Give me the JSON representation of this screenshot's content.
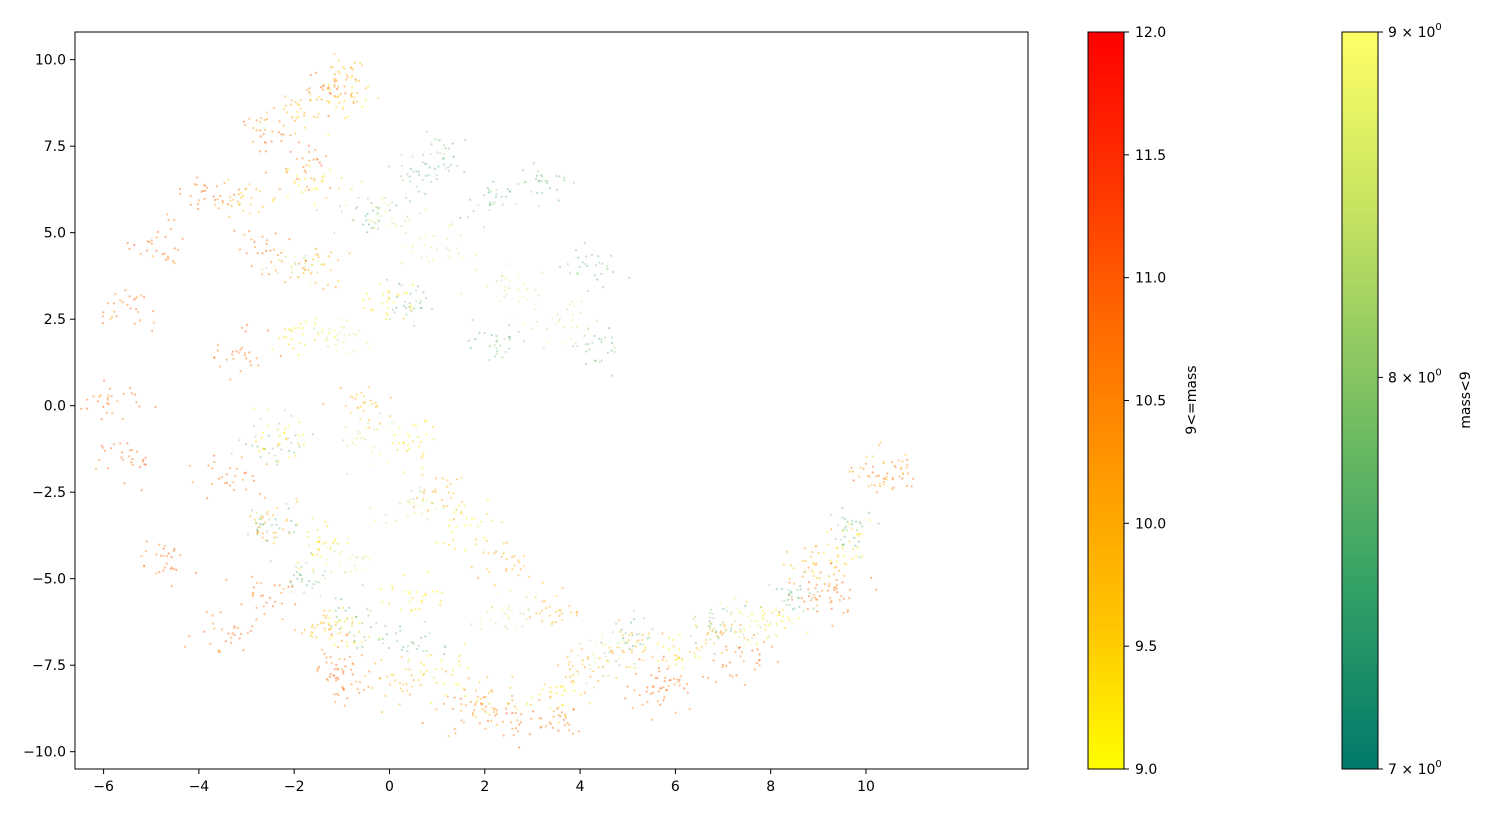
{
  "chart_data": {
    "type": "scatter",
    "title": "",
    "xlabel": "",
    "ylabel": "",
    "xlim": [
      -6.6,
      13.4
    ],
    "ylim": [
      -10.5,
      10.8
    ],
    "x_ticks": [
      {
        "value": -6,
        "label": "−6"
      },
      {
        "value": -4,
        "label": "−4"
      },
      {
        "value": -2,
        "label": "−2"
      },
      {
        "value": 0,
        "label": "0"
      },
      {
        "value": 2,
        "label": "2"
      },
      {
        "value": 4,
        "label": "4"
      },
      {
        "value": 6,
        "label": "6"
      },
      {
        "value": 8,
        "label": "8"
      },
      {
        "value": 10,
        "label": "10"
      }
    ],
    "y_ticks": [
      {
        "value": 10.0,
        "label": "10.0"
      },
      {
        "value": 7.5,
        "label": "7.5"
      },
      {
        "value": 5.0,
        "label": "5.0"
      },
      {
        "value": 2.5,
        "label": "2.5"
      },
      {
        "value": 0.0,
        "label": "0.0"
      },
      {
        "value": -2.5,
        "label": "−2.5"
      },
      {
        "value": -5.0,
        "label": "−5.0"
      },
      {
        "value": -7.5,
        "label": "−7.5"
      },
      {
        "value": -10.0,
        "label": "−10.0"
      }
    ],
    "grid": false,
    "series": [
      {
        "name": "9<=mass",
        "colormap": [
          "#ffff00",
          "#ffc400",
          "#ff9a00",
          "#ff6a00",
          "#ff3300",
          "#ff0000"
        ],
        "value_range": [
          9.0,
          12.0
        ],
        "regions": [
          {
            "value_range": [
              10.3,
              11.2
            ],
            "points": [
              [
                -5.8,
                0.2
              ],
              [
                -5.5,
                2.8
              ],
              [
                -4.8,
                4.6
              ],
              [
                -3.9,
                6.2
              ],
              [
                -2.5,
                8.0
              ],
              [
                -1.2,
                9.2
              ],
              [
                -1.8,
                7.0
              ],
              [
                -2.6,
                4.5
              ],
              [
                -3.1,
                1.5
              ],
              [
                -3.2,
                -2.0
              ],
              [
                -2.5,
                -5.5
              ],
              [
                -1.0,
                -7.5
              ],
              [
                1.5,
                -8.8
              ],
              [
                3.5,
                -9.1
              ],
              [
                5.5,
                -8.2
              ],
              [
                7.5,
                -7.3
              ],
              [
                9.2,
                -5.2
              ],
              [
                10.4,
                -2.0
              ],
              [
                9.0,
                -5.6
              ],
              [
                6.0,
                -8.0
              ],
              [
                2.5,
                -9.0
              ],
              [
                -1.0,
                -8.0
              ],
              [
                -3.5,
                -6.6
              ],
              [
                -4.8,
                -4.4
              ],
              [
                -5.5,
                -1.6
              ]
            ]
          },
          {
            "value_range": [
              9.6,
              10.3
            ],
            "points": [
              [
                -3.0,
                6.0
              ],
              [
                -2.0,
                8.6
              ],
              [
                -1.0,
                9.6
              ],
              [
                -1.5,
                4.0
              ],
              [
                -0.5,
                0.0
              ],
              [
                1.0,
                -2.5
              ],
              [
                2.4,
                -4.5
              ],
              [
                3.5,
                -5.8
              ],
              [
                5.0,
                -6.9
              ],
              [
                7.0,
                -6.6
              ],
              [
                9.0,
                -4.6
              ],
              [
                10.4,
                -1.8
              ],
              [
                4.0,
                -7.5
              ],
              [
                2.0,
                -8.6
              ],
              [
                0.2,
                -8.0
              ],
              [
                -1.5,
                -6.5
              ],
              [
                -2.5,
                -3.5
              ]
            ]
          },
          {
            "value_range": [
              9.0,
              9.6
            ],
            "points": [
              [
                -2.0,
                2.0
              ],
              [
                -1.5,
                6.5
              ],
              [
                -1.0,
                8.8
              ],
              [
                0.0,
                3.0
              ],
              [
                0.5,
                -1.0
              ],
              [
                1.6,
                -3.5
              ],
              [
                0.5,
                -5.5
              ],
              [
                -1.0,
                -6.5
              ],
              [
                1.0,
                -7.7
              ],
              [
                3.5,
                -8.4
              ],
              [
                6.0,
                -7.2
              ],
              [
                8.0,
                -6.2
              ],
              [
                9.5,
                -4.2
              ],
              [
                -2.2,
                -1.0
              ],
              [
                -1.5,
                -4.0
              ]
            ]
          }
        ]
      },
      {
        "name": "mass<9",
        "colormap": [
          "#00796b",
          "#34a265",
          "#7cc062",
          "#c4e261",
          "#ffff66"
        ],
        "value_range": [
          7.0,
          9.0
        ],
        "colorbar_scale": "log",
        "regions": [
          {
            "value_range": [
              7.3,
              8.2
            ],
            "points": [
              [
                0.6,
                6.8
              ],
              [
                1.0,
                7.3
              ],
              [
                2.2,
                6.0
              ],
              [
                3.3,
                6.5
              ],
              [
                4.3,
                4.0
              ],
              [
                4.3,
                1.7
              ],
              [
                2.2,
                1.8
              ],
              [
                0.5,
                3.0
              ],
              [
                -0.5,
                5.5
              ],
              [
                -2.5,
                -1.0
              ],
              [
                -2.6,
                -3.5
              ],
              [
                -1.8,
                -5.0
              ],
              [
                -0.8,
                -6.2
              ],
              [
                5.0,
                -6.9
              ],
              [
                6.8,
                -6.4
              ],
              [
                8.5,
                -5.5
              ],
              [
                9.7,
                -3.6
              ],
              [
                0.5,
                -6.8
              ]
            ]
          },
          {
            "value_range": [
              8.2,
              8.9
            ],
            "points": [
              [
                -2.0,
                4.0
              ],
              [
                -1.0,
                2.0
              ],
              [
                0.0,
                5.5
              ],
              [
                1.0,
                4.5
              ],
              [
                2.5,
                3.5
              ],
              [
                3.5,
                2.5
              ],
              [
                -0.5,
                -1.0
              ],
              [
                0.5,
                -3.0
              ],
              [
                2.5,
                -6.0
              ],
              [
                4.5,
                -7.3
              ],
              [
                7.5,
                -6.3
              ],
              [
                -1.0,
                -4.5
              ]
            ]
          }
        ]
      }
    ],
    "colorbars": [
      {
        "label": "9<=mass",
        "range": [
          9.0,
          12.0
        ],
        "scale": "linear",
        "colors": [
          "#ffff00",
          "#ffc400",
          "#ff9a00",
          "#ff6a00",
          "#ff3300",
          "#ff0000"
        ],
        "ticks": [
          {
            "value": 12.0,
            "label": "12.0"
          },
          {
            "value": 11.5,
            "label": "11.5"
          },
          {
            "value": 11.0,
            "label": "11.0"
          },
          {
            "value": 10.5,
            "label": "10.5"
          },
          {
            "value": 10.0,
            "label": "10.0"
          },
          {
            "value": 9.5,
            "label": "9.5"
          },
          {
            "value": 9.0,
            "label": "9.0"
          }
        ]
      },
      {
        "label": "mass<9",
        "range": [
          7.0,
          9.0
        ],
        "scale": "log",
        "colors": [
          "#00796b",
          "#34a265",
          "#7cc062",
          "#c4e261",
          "#ffff66"
        ],
        "ticks": [
          {
            "value": 9.0,
            "mantissa": "9",
            "base": "10",
            "exponent": "0"
          },
          {
            "value": 8.0,
            "mantissa": "8",
            "base": "10",
            "exponent": "0"
          },
          {
            "value": 7.0,
            "mantissa": "7",
            "base": "10",
            "exponent": "0"
          }
        ]
      }
    ]
  }
}
